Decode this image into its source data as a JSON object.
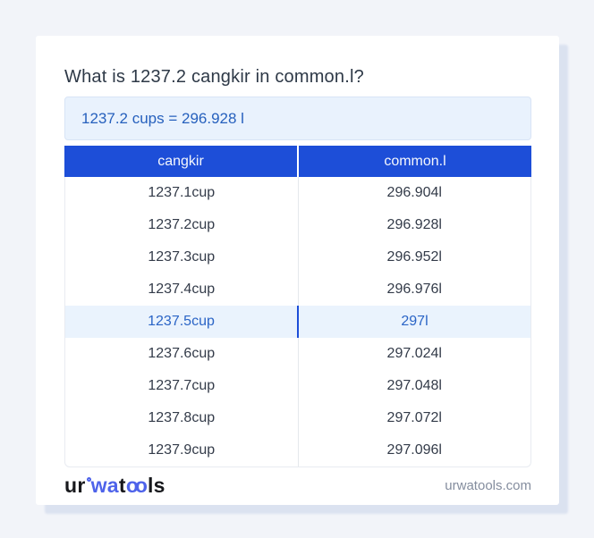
{
  "header": {
    "title": "What is 1237.2 cangkir in common.l?"
  },
  "result_box": {
    "text": "1237.2 cups = 296.928 l"
  },
  "table": {
    "headers": [
      "cangkir",
      "common.l"
    ],
    "rows": [
      {
        "cangkir": "1237.1cup",
        "common_l": "296.904l",
        "highlighted": false
      },
      {
        "cangkir": "1237.2cup",
        "common_l": "296.928l",
        "highlighted": false
      },
      {
        "cangkir": "1237.3cup",
        "common_l": "296.952l",
        "highlighted": false
      },
      {
        "cangkir": "1237.4cup",
        "common_l": "296.976l",
        "highlighted": false
      },
      {
        "cangkir": "1237.5cup",
        "common_l": "297l",
        "highlighted": true
      },
      {
        "cangkir": "1237.6cup",
        "common_l": "297.024l",
        "highlighted": false
      },
      {
        "cangkir": "1237.7cup",
        "common_l": "297.048l",
        "highlighted": false
      },
      {
        "cangkir": "1237.8cup",
        "common_l": "297.072l",
        "highlighted": false
      },
      {
        "cangkir": "1237.9cup",
        "common_l": "297.096l",
        "highlighted": false
      }
    ]
  },
  "footer": {
    "logo": {
      "seg1": "ur",
      "seg2": "wa",
      "seg3": "t",
      "seg4": "oo",
      "seg5": "ls"
    },
    "site_url": "urwatools.com"
  },
  "colors": {
    "page_bg": "#f2f4f9",
    "card_bg": "#ffffff",
    "card_shadow": "#dbe2f0",
    "accent_blue": "#1d4ed8",
    "result_box_bg": "#e9f2fd",
    "result_box_text": "#2660bd",
    "highlight_row_bg": "#eaf3fd",
    "highlight_row_text": "#2a64c6",
    "row_text": "#333b49",
    "logo_blue": "#4e63ea",
    "site_url_text": "#848d9e"
  }
}
